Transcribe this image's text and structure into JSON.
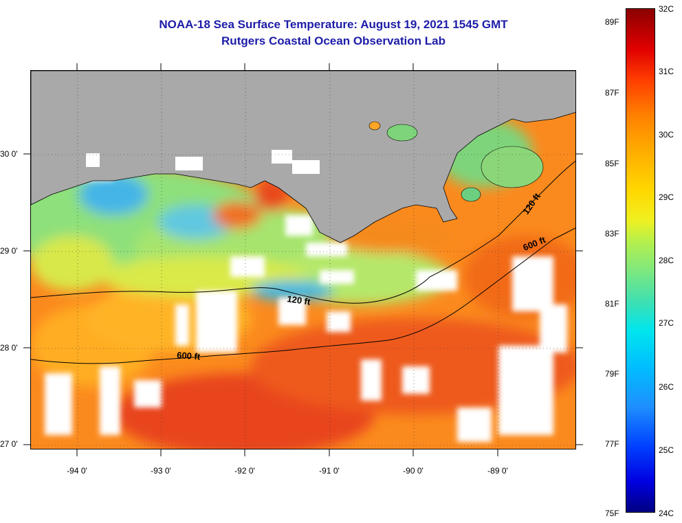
{
  "header": {
    "title": "NOAA-18 Sea Surface Temperature:  August 19, 2021 1545 GMT",
    "subtitle": "Rutgers Coastal Ocean Observation Lab"
  },
  "latitude_labels": [
    "30 0'",
    "29 0'",
    "28 0'",
    "27 0'"
  ],
  "longitude_labels": [
    "-94 0'",
    "-93 0'",
    "-92 0'",
    "-91 0'",
    "-90 0'",
    "-89 0'"
  ],
  "contour_labels": {
    "inner_west": "120 ft",
    "outer_west": "600 ft",
    "inner_east": "120 ft",
    "outer_east": "600 ft"
  },
  "colorbar": {
    "fahrenheit_labels": [
      "89F",
      "87F",
      "85F",
      "83F",
      "81F",
      "79F",
      "77F",
      "75F"
    ],
    "celsius_labels": [
      "32C",
      "31C",
      "30C",
      "29C",
      "28C",
      "27C",
      "26C",
      "25C",
      "24C"
    ],
    "min_c": 24,
    "max_c": 32
  },
  "colors": {
    "land": "#a9a9a9",
    "title": "#1c1ca8",
    "cloud": "#ffffff",
    "warm_water": "#ff8c1a",
    "hot_water": "#e83a10",
    "cool_water": "#5fd98a",
    "cold_water": "#1e90ff"
  }
}
